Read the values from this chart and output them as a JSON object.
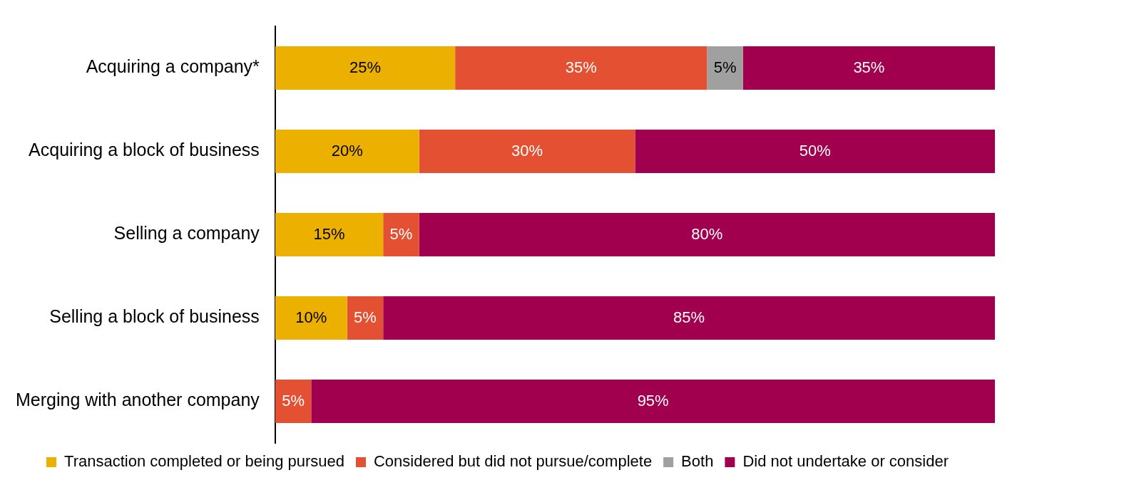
{
  "chart_data": {
    "type": "bar",
    "orientation": "horizontal",
    "stacked": true,
    "legend": "bottom",
    "categories": [
      "Acquiring a company*",
      "Acquiring a block of business",
      "Selling a company",
      "Selling a block of business",
      "Merging with another company"
    ],
    "series": [
      {
        "name": "Transaction completed or being pursued",
        "color": "#ebb000",
        "values": [
          25,
          20,
          15,
          10,
          null
        ],
        "value_labels": [
          "25%",
          "20%",
          "15%",
          "10%",
          null
        ]
      },
      {
        "name": "Considered but did not pursue/complete",
        "color": "#e45132",
        "values": [
          35,
          30,
          5,
          5,
          5
        ],
        "value_labels": [
          "35%",
          "30%",
          "5%",
          "5%",
          "5%"
        ]
      },
      {
        "name": "Both",
        "color": "#a0a0a0",
        "values": [
          5,
          null,
          null,
          null,
          null
        ],
        "value_labels": [
          "5%",
          null,
          null,
          null,
          null
        ]
      },
      {
        "name": "Did not undertake or consider",
        "color": "#a0004d",
        "values": [
          35,
          50,
          80,
          85,
          95
        ],
        "value_labels": [
          "35%",
          "50%",
          "80%",
          "85%",
          "95%"
        ]
      }
    ]
  }
}
